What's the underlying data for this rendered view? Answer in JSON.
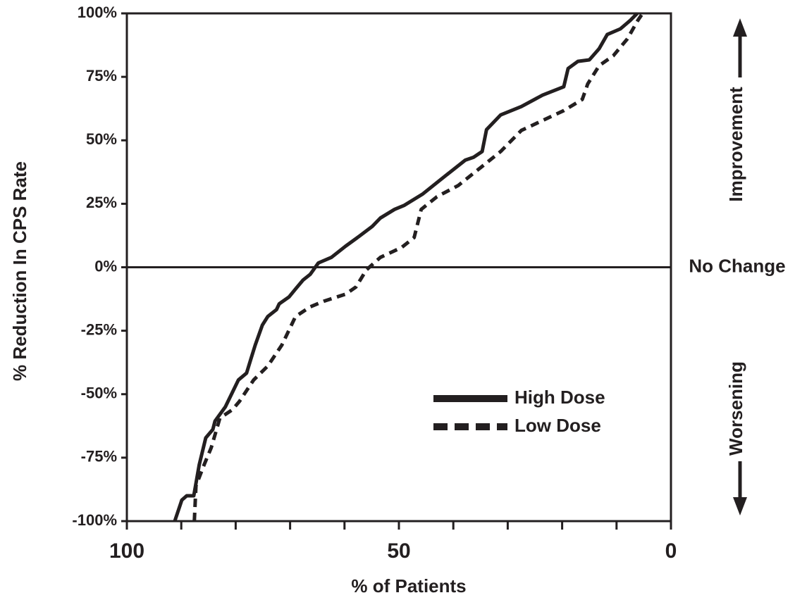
{
  "chart_data": {
    "type": "line",
    "y_label": "% Reduction In CPS Rate",
    "x_label": "% of Patients",
    "xlim": [
      100,
      0
    ],
    "xticks": [
      100,
      50,
      0
    ],
    "x_minor_ticks": [
      90,
      80,
      70,
      60,
      40,
      30,
      20,
      10
    ],
    "ylim": [
      -100,
      100
    ],
    "yticks": [
      {
        "value": -100,
        "label": "-100%"
      },
      {
        "value": -75,
        "label": "-75%"
      },
      {
        "value": -50,
        "label": "-50%"
      },
      {
        "value": -25,
        "label": "-25%"
      },
      {
        "value": 0,
        "label": "0%"
      },
      {
        "value": 25,
        "label": "25%"
      },
      {
        "value": 50,
        "label": "50%"
      },
      {
        "value": 75,
        "label": "75%"
      },
      {
        "value": 100,
        "label": "100%"
      }
    ],
    "reference_line": {
      "value": 0,
      "label": "No Change"
    },
    "annotations": [
      "Improvement",
      "Worsening"
    ],
    "series": [
      {
        "name": "High Dose",
        "color": "#231f20",
        "linestyle": "solid",
        "x": [
          91.2,
          89.9,
          89.0,
          87.7,
          86.7,
          85.5,
          84.2,
          83.8,
          81.9,
          79.5,
          78.0,
          77.2,
          76.4,
          75.1,
          74.1,
          72.5,
          72.0,
          70.2,
          68.9,
          67.6,
          66.3,
          64.8,
          62.4,
          59.8,
          57.3,
          54.9,
          53.4,
          50.8,
          49.0,
          45.6,
          41.7,
          37.8,
          36.3,
          34.7,
          33.9,
          31.3,
          27.5,
          23.6,
          19.7,
          18.9,
          17.1,
          15.0,
          13.2,
          11.7,
          9.3,
          7.5,
          6.2
        ],
        "values": [
          -100,
          -91.7,
          -90,
          -90,
          -77.8,
          -67.2,
          -63.9,
          -60.6,
          -55,
          -44.4,
          -41.7,
          -36.1,
          -30.6,
          -22.8,
          -19.4,
          -16.7,
          -14.4,
          -11.7,
          -8.3,
          -5,
          -2.8,
          1.7,
          3.9,
          8.3,
          12.2,
          16.1,
          19.4,
          22.8,
          24.4,
          28.9,
          35.6,
          42.2,
          43.3,
          45.6,
          54.2,
          60,
          63.3,
          67.8,
          71.1,
          78.3,
          81.1,
          81.7,
          86.1,
          91.7,
          93.9,
          97.2,
          100
        ]
      },
      {
        "name": "Low Dose",
        "color": "#231f20",
        "linestyle": "dashed",
        "x": [
          87.6,
          87.3,
          85.8,
          84.5,
          82.9,
          80.6,
          79.3,
          76.7,
          74.1,
          71.5,
          69.0,
          66.3,
          63.7,
          59.8,
          57.9,
          56.0,
          53.4,
          49.5,
          47.2,
          45.9,
          43.0,
          39.1,
          33.9,
          31.3,
          27.5,
          23.6,
          19.7,
          16.3,
          15.3,
          13.2,
          10.6,
          8.0,
          6.1,
          5.4
        ],
        "values": [
          -100,
          -86.1,
          -77.8,
          -71.1,
          -59.4,
          -56.1,
          -52.8,
          -44.4,
          -38.9,
          -30.6,
          -19.4,
          -15.6,
          -13.3,
          -10.6,
          -7.8,
          -1.1,
          3.9,
          7.8,
          11.7,
          22.8,
          27.8,
          32.2,
          41.1,
          45.6,
          53.9,
          57.8,
          61.7,
          66.1,
          72.2,
          79.4,
          83.3,
          90,
          97.2,
          99.4
        ]
      }
    ]
  }
}
